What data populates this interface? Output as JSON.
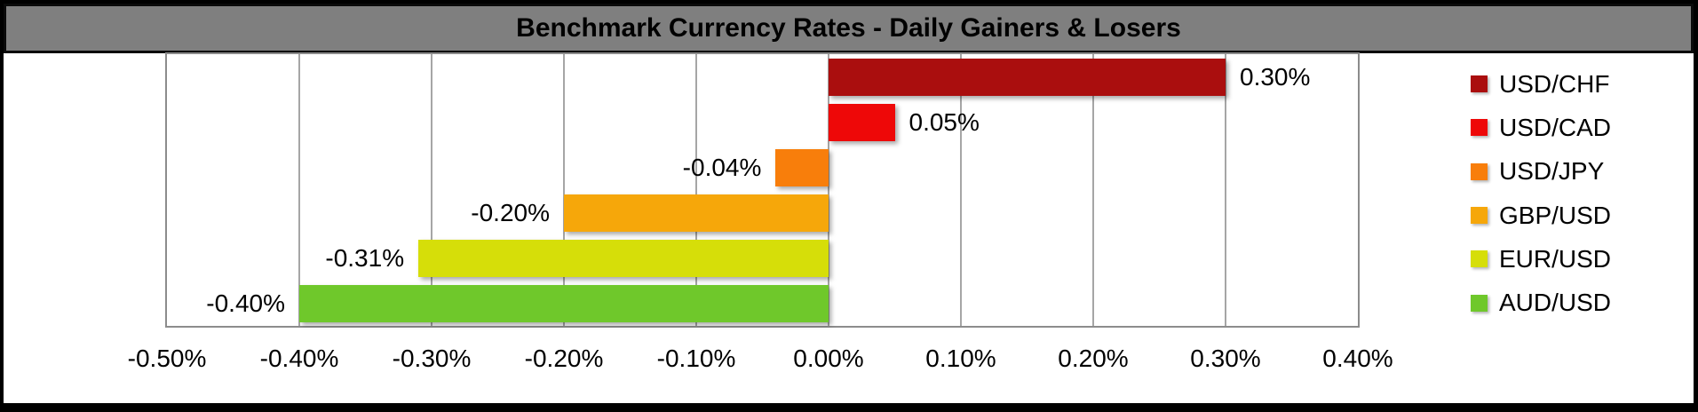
{
  "chart_data": {
    "type": "bar",
    "orientation": "horizontal",
    "title": "Benchmark Currency Rates - Daily Gainers & Losers",
    "categories": [
      "USD/CHF",
      "USD/CAD",
      "USD/JPY",
      "GBP/USD",
      "EUR/USD",
      "AUD/USD"
    ],
    "values": [
      0.3,
      0.05,
      -0.04,
      -0.2,
      -0.31,
      -0.4
    ],
    "data_labels": [
      "0.30%",
      "0.05%",
      "-0.04%",
      "-0.20%",
      "-0.31%",
      "-0.40%"
    ],
    "bar_colors": [
      "#AA0E0E",
      "#EE0808",
      "#F87E0B",
      "#F6A70A",
      "#D6DE09",
      "#6FC82B"
    ],
    "x_ticks": [
      "-0.50%",
      "-0.40%",
      "-0.30%",
      "-0.20%",
      "-0.10%",
      "0.00%",
      "0.10%",
      "0.20%",
      "0.30%",
      "0.40%"
    ],
    "x_tick_values": [
      -0.5,
      -0.4,
      -0.3,
      -0.2,
      -0.1,
      0.0,
      0.1,
      0.2,
      0.3,
      0.4
    ],
    "xlim": [
      -0.5,
      0.4
    ],
    "grid": "vertical",
    "legend_position": "right",
    "legend": [
      "USD/CHF",
      "USD/CAD",
      "USD/JPY",
      "GBP/USD",
      "EUR/USD",
      "AUD/USD"
    ],
    "colors": {
      "title_bar_bg": "#7F7F7F",
      "title_text": "#000000",
      "gridline": "#A6A6A6",
      "plot_border": "#8C8C8C",
      "plot_bg": "#FFFFFF",
      "frame_border": "#000000"
    }
  }
}
